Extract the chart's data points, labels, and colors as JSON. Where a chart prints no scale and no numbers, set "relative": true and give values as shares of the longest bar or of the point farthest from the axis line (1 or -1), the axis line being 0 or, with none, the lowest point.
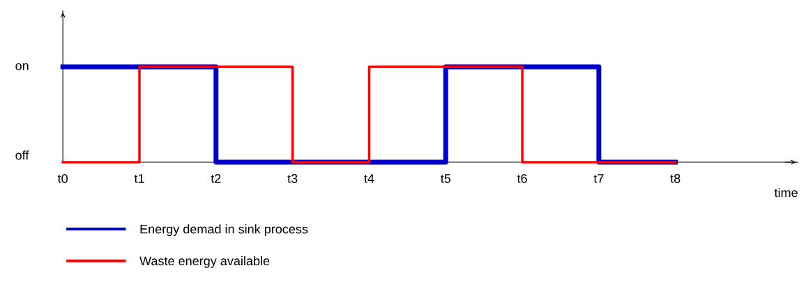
{
  "chart_data": {
    "type": "step",
    "xlabel": "time",
    "relative": true,
    "categories": [
      "t0",
      "t1",
      "t2",
      "t3",
      "t4",
      "t5",
      "t6",
      "t7",
      "t8"
    ],
    "series": [
      {
        "name": "Energy demad in sink process",
        "color": "#0000cc",
        "values": [
          1,
          1,
          0,
          0,
          0,
          1,
          1,
          0,
          0
        ]
      },
      {
        "name": "Waste energy available",
        "color": "#ff0000",
        "values": [
          0,
          1,
          1,
          0,
          1,
          1,
          0,
          0,
          0
        ]
      }
    ],
    "annotations": [
      "on",
      "off"
    ],
    "legend": "bottom left"
  }
}
